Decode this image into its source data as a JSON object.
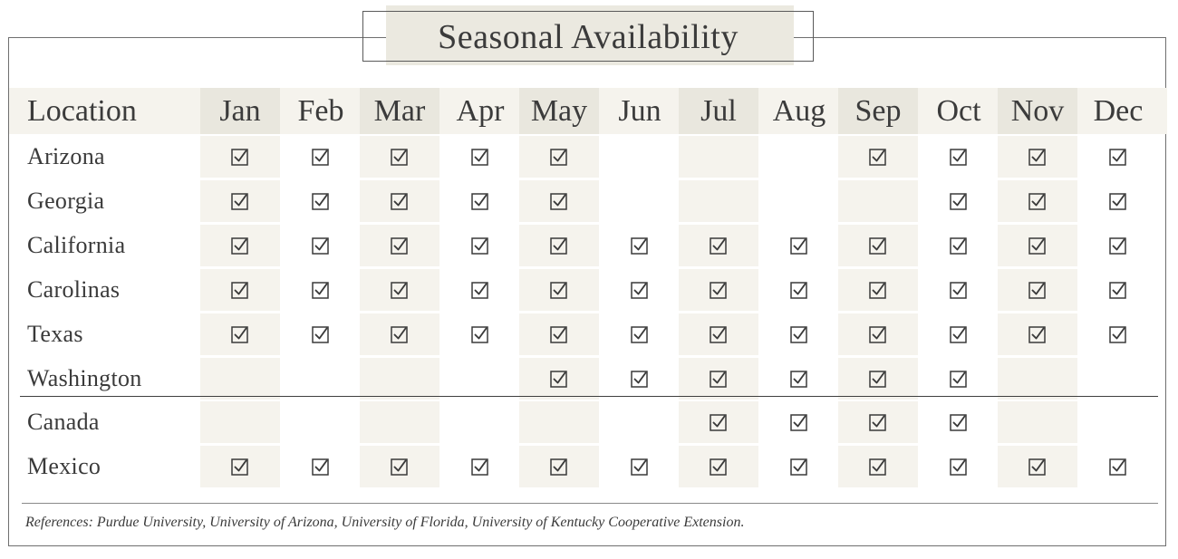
{
  "title": "Seasonal Availability",
  "header": {
    "location_label": "Location",
    "months": [
      "Jan",
      "Feb",
      "Mar",
      "Apr",
      "May",
      "Jun",
      "Jul",
      "Aug",
      "Sep",
      "Oct",
      "Nov",
      "Dec"
    ]
  },
  "rows": [
    {
      "location": "Arizona",
      "availability": [
        true,
        true,
        true,
        true,
        true,
        false,
        false,
        false,
        true,
        true,
        true,
        true
      ]
    },
    {
      "location": "Georgia",
      "availability": [
        true,
        true,
        true,
        true,
        true,
        false,
        false,
        false,
        false,
        true,
        true,
        true
      ]
    },
    {
      "location": "California",
      "availability": [
        true,
        true,
        true,
        true,
        true,
        true,
        true,
        true,
        true,
        true,
        true,
        true
      ]
    },
    {
      "location": "Carolinas",
      "availability": [
        true,
        true,
        true,
        true,
        true,
        true,
        true,
        true,
        true,
        true,
        true,
        true
      ]
    },
    {
      "location": "Texas",
      "availability": [
        true,
        true,
        true,
        true,
        true,
        true,
        true,
        true,
        true,
        true,
        true,
        true
      ]
    },
    {
      "location": "Washington",
      "availability": [
        false,
        false,
        false,
        false,
        true,
        true,
        true,
        true,
        true,
        true,
        false,
        false
      ]
    },
    {
      "location": "Canada",
      "availability": [
        false,
        false,
        false,
        false,
        false,
        false,
        true,
        true,
        true,
        true,
        false,
        false
      ]
    },
    {
      "location": "Mexico",
      "availability": [
        true,
        true,
        true,
        true,
        true,
        true,
        true,
        true,
        true,
        true,
        true,
        true
      ]
    }
  ],
  "references": "References: Purdue University, University of Arizona, University of Florida, University of Kentucky Cooperative Extension.",
  "colors": {
    "header_band": "#f5f3ed",
    "shaded_column": "#f5f3ed",
    "shaded_header": "#e9e7de",
    "text": "#3a3a3a"
  },
  "icons": {
    "available": "checked-box-icon"
  }
}
